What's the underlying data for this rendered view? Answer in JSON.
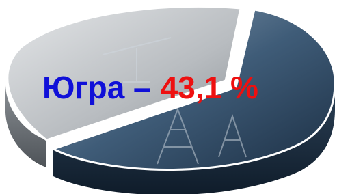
{
  "caption": {
    "region": "Югра –",
    "share": "43,1 %"
  }
}
